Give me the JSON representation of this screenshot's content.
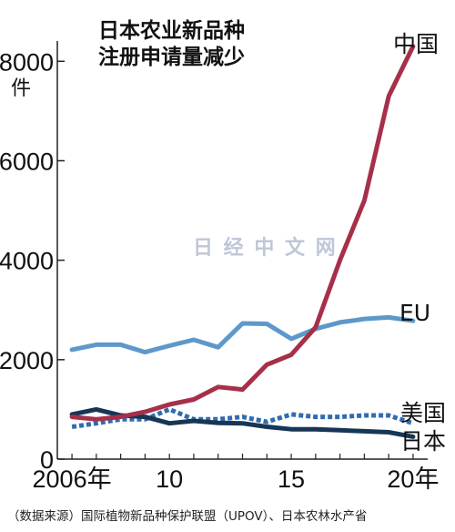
{
  "chart_data": {
    "type": "line",
    "title_lines": [
      "日本农业新品种",
      "注册申请量减少"
    ],
    "unit": "件",
    "x": [
      2006,
      2007,
      2008,
      2009,
      2010,
      2011,
      2012,
      2013,
      2014,
      2015,
      2016,
      2017,
      2018,
      2019,
      2020
    ],
    "xlim": [
      2005.4,
      2020.6
    ],
    "ylim": [
      0,
      8500
    ],
    "y_ticks": [
      {
        "value": 0,
        "label": "0"
      },
      {
        "value": 2000,
        "label": "2000"
      },
      {
        "value": 4000,
        "label": "4000"
      },
      {
        "value": 6000,
        "label": "6000"
      },
      {
        "value": 8000,
        "label": "8000"
      }
    ],
    "x_ticks": [
      {
        "value": 2006,
        "label": "2006年"
      },
      {
        "value": 2010,
        "label": "10"
      },
      {
        "value": 2015,
        "label": "15"
      },
      {
        "value": 2020,
        "label": "20年"
      }
    ],
    "series": [
      {
        "name": "中国",
        "color": "#a6304a",
        "dashed": false,
        "values": [
          850,
          800,
          850,
          950,
          1100,
          1200,
          1450,
          1400,
          1900,
          2100,
          2650,
          4000,
          5200,
          7300,
          8300
        ]
      },
      {
        "name": "EU",
        "color": "#5e98cb",
        "dashed": false,
        "values": [
          2200,
          2300,
          2300,
          2150,
          2280,
          2400,
          2250,
          2730,
          2720,
          2420,
          2620,
          2750,
          2820,
          2850,
          2780
        ]
      },
      {
        "name": "美国",
        "color": "#2f6db0",
        "dashed": true,
        "values": [
          650,
          720,
          800,
          800,
          1000,
          800,
          800,
          850,
          750,
          900,
          850,
          850,
          880,
          880,
          720
        ]
      },
      {
        "name": "日本",
        "color": "#173655",
        "dashed": false,
        "values": [
          900,
          1000,
          880,
          850,
          720,
          770,
          730,
          720,
          650,
          600,
          600,
          580,
          560,
          540,
          450
        ]
      }
    ],
    "grid": false,
    "legend": "labels at line ends (right)"
  },
  "source": "（数据来源）国际植物新品种保护联盟（UPOV）、日本农林水产省",
  "watermark": "日 经 中 文 网"
}
